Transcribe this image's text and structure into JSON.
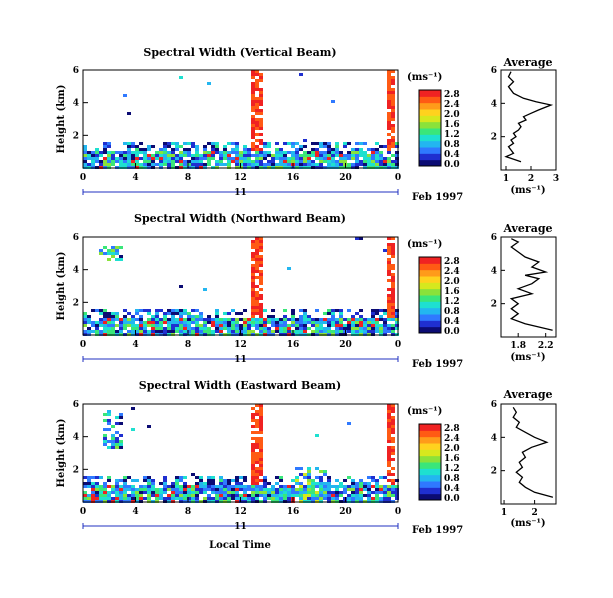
{
  "chart_data": [
    {
      "type": "heatmap",
      "title": "Spectral Width (Vertical Beam)",
      "ylabel": "Height (km)",
      "yticks": [
        "6",
        "4",
        "2"
      ],
      "xticks": [
        "0",
        "4",
        "8",
        "12",
        "16",
        "20",
        "0"
      ],
      "xlim_hours": [
        0,
        24
      ],
      "ylim_km": [
        0,
        6
      ],
      "day_label": "11",
      "month_label": "Feb 1997",
      "colorbar": {
        "unit": "(ms⁻¹)",
        "ticks": [
          "2.8",
          "2.4",
          "2.0",
          "1.6",
          "1.2",
          "0.8",
          "0.4",
          "0.0"
        ]
      },
      "average": {
        "title": "Average",
        "xlabel": "(ms⁻¹)",
        "xticks": [
          "1",
          "2",
          "3"
        ],
        "yticks": [
          "6",
          "4",
          "2"
        ],
        "xlim": [
          0.8,
          3.0
        ],
        "profile": [
          [
            1.6,
            0.5
          ],
          [
            1.0,
            0.8
          ],
          [
            1.3,
            1.0
          ],
          [
            1.2,
            1.2
          ],
          [
            1.1,
            1.4
          ],
          [
            1.3,
            1.6
          ],
          [
            1.2,
            1.8
          ],
          [
            1.4,
            2.0
          ],
          [
            1.3,
            2.2
          ],
          [
            1.5,
            2.4
          ],
          [
            1.6,
            2.6
          ],
          [
            1.5,
            2.8
          ],
          [
            1.8,
            3.0
          ],
          [
            1.7,
            3.2
          ],
          [
            2.0,
            3.4
          ],
          [
            2.3,
            3.6
          ],
          [
            2.8,
            3.9
          ],
          [
            2.2,
            4.1
          ],
          [
            1.7,
            4.3
          ],
          [
            1.3,
            4.6
          ],
          [
            1.1,
            5.0
          ],
          [
            1.3,
            5.3
          ],
          [
            1.1,
            5.6
          ],
          [
            1.2,
            5.9
          ]
        ]
      }
    },
    {
      "type": "heatmap",
      "title": "Spectral Width (Northward Beam)",
      "ylabel": "Height (km)",
      "yticks": [
        "6",
        "4",
        "2"
      ],
      "xticks": [
        "0",
        "4",
        "8",
        "12",
        "16",
        "20",
        "0"
      ],
      "xlim_hours": [
        0,
        24
      ],
      "ylim_km": [
        0,
        6
      ],
      "day_label": "11",
      "month_label": "Feb 1997",
      "colorbar": {
        "unit": "(ms⁻¹)",
        "ticks": [
          "2.8",
          "2.4",
          "2.0",
          "1.6",
          "1.2",
          "0.8",
          "0.4",
          "0.0"
        ]
      },
      "average": {
        "title": "Average",
        "xlabel": "(ms⁻¹)",
        "xticks": [
          "1.8",
          "2.2"
        ],
        "yticks": [
          "6",
          "4",
          "2"
        ],
        "xlim": [
          1.55,
          2.35
        ],
        "profile": [
          [
            2.3,
            0.4
          ],
          [
            1.9,
            0.8
          ],
          [
            1.7,
            1.1
          ],
          [
            1.8,
            1.4
          ],
          [
            1.7,
            1.7
          ],
          [
            1.8,
            2.0
          ],
          [
            1.7,
            2.3
          ],
          [
            2.0,
            2.6
          ],
          [
            1.8,
            2.9
          ],
          [
            2.0,
            3.2
          ],
          [
            2.1,
            3.5
          ],
          [
            1.9,
            3.7
          ],
          [
            2.2,
            3.9
          ],
          [
            2.0,
            4.2
          ],
          [
            2.1,
            4.5
          ],
          [
            1.9,
            4.8
          ],
          [
            1.8,
            5.1
          ],
          [
            1.7,
            5.4
          ],
          [
            1.8,
            5.7
          ],
          [
            1.7,
            5.9
          ]
        ]
      }
    },
    {
      "type": "heatmap",
      "title": "Spectral Width (Eastward Beam)",
      "ylabel": "Height (km)",
      "yticks": [
        "6",
        "4",
        "2"
      ],
      "xticks": [
        "0",
        "4",
        "8",
        "12",
        "16",
        "20",
        "0"
      ],
      "xlim_hours": [
        0,
        24
      ],
      "ylim_km": [
        0,
        6
      ],
      "day_label": "11",
      "month_label": "Feb 1997",
      "xlabel": "Local Time",
      "colorbar": {
        "unit": "(ms⁻¹)",
        "ticks": [
          "2.8",
          "2.4",
          "2.0",
          "1.6",
          "1.2",
          "0.8",
          "0.4",
          "0.0"
        ]
      },
      "average": {
        "title": "Average",
        "xlabel": "(ms⁻¹)",
        "xticks": [
          "1",
          "2"
        ],
        "yticks": [
          "6",
          "4",
          "2"
        ],
        "xlim": [
          0.9,
          2.7
        ],
        "profile": [
          [
            2.6,
            0.4
          ],
          [
            2.0,
            0.7
          ],
          [
            1.7,
            1.0
          ],
          [
            1.5,
            1.3
          ],
          [
            1.6,
            1.6
          ],
          [
            1.4,
            1.9
          ],
          [
            1.6,
            2.2
          ],
          [
            1.5,
            2.5
          ],
          [
            1.7,
            2.8
          ],
          [
            1.6,
            3.1
          ],
          [
            1.9,
            3.4
          ],
          [
            2.4,
            3.7
          ],
          [
            2.0,
            4.0
          ],
          [
            1.7,
            4.3
          ],
          [
            1.4,
            4.6
          ],
          [
            1.5,
            4.9
          ],
          [
            1.3,
            5.2
          ],
          [
            1.4,
            5.5
          ],
          [
            1.3,
            5.8
          ]
        ]
      }
    }
  ]
}
